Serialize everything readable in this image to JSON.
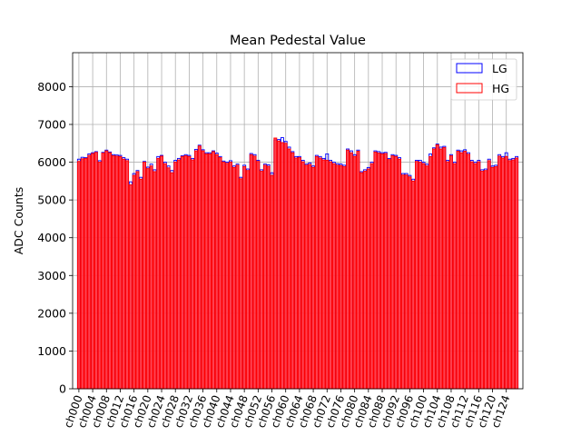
{
  "chart_data": {
    "type": "bar",
    "title": "Mean Pedestal Value",
    "xlabel": "",
    "ylabel": "ADC Counts",
    "ylim": [
      0,
      8900
    ],
    "yticks": [
      0,
      1000,
      2000,
      3000,
      4000,
      5000,
      6000,
      7000,
      8000
    ],
    "grid": true,
    "legend_position": "top-right",
    "colors": {
      "LG": "#0000ff",
      "HG": "#ff0000",
      "grid": "#b0b0b0"
    },
    "category_prefix": "ch",
    "category_count": 128,
    "tick_label_every": 4,
    "series": [
      {
        "name": "LG",
        "values": [
          6080,
          6130,
          6120,
          6220,
          6250,
          6280,
          6040,
          6260,
          6320,
          6270,
          6200,
          6190,
          6180,
          6120,
          6080,
          5480,
          5700,
          5780,
          5600,
          6020,
          5870,
          5950,
          5800,
          6150,
          6180,
          6000,
          5900,
          5780,
          6050,
          6100,
          6170,
          6200,
          6180,
          6100,
          6340,
          6450,
          6330,
          6250,
          6250,
          6300,
          6240,
          6150,
          6030,
          6000,
          6040,
          5900,
          5950,
          5600,
          5920,
          5820,
          6230,
          6200,
          6050,
          5800,
          5950,
          5930,
          5720,
          6580,
          6600,
          6650,
          6550,
          6400,
          6280,
          6150,
          6150,
          6050,
          5950,
          5980,
          5900,
          6180,
          6150,
          6100,
          6220,
          6050,
          6000,
          5960,
          5950,
          5920,
          6350,
          6300,
          6200,
          6320,
          5750,
          5800,
          5860,
          6000,
          6300,
          6280,
          6250,
          6260,
          6100,
          6200,
          6180,
          6120,
          5700,
          5700,
          5650,
          5550,
          6050,
          6050,
          6000,
          5950,
          6220,
          6380,
          6480,
          6400,
          6420,
          6050,
          6200,
          6000,
          6320,
          6300,
          6330,
          6250,
          6050,
          6000,
          6050,
          5800,
          5820,
          6080,
          5900,
          5920,
          6200,
          6150,
          6250,
          6080,
          6100,
          6150
        ]
      },
      {
        "name": "HG",
        "values": [
          6020,
          6090,
          6100,
          6180,
          6230,
          6260,
          6000,
          6240,
          6300,
          6250,
          6170,
          6160,
          6150,
          6080,
          6040,
          5400,
          5650,
          5750,
          5550,
          6000,
          5830,
          5900,
          5750,
          6100,
          6160,
          5960,
          5850,
          5720,
          6000,
          6060,
          6150,
          6170,
          6150,
          6060,
          6300,
          6430,
          6300,
          6220,
          6220,
          6280,
          6200,
          6120,
          6000,
          5970,
          6000,
          5860,
          5920,
          5560,
          5880,
          5780,
          6200,
          6160,
          6020,
          5760,
          5920,
          5890,
          5650,
          6640,
          6560,
          6520,
          6500,
          6350,
          6250,
          6110,
          6120,
          6010,
          5920,
          5940,
          5860,
          6150,
          6110,
          6060,
          6050,
          6010,
          5960,
          5920,
          5910,
          5880,
          6320,
          6250,
          6150,
          6290,
          5720,
          5760,
          5820,
          5960,
          6270,
          6240,
          6220,
          6230,
          6070,
          6170,
          6150,
          6080,
          5660,
          5660,
          5610,
          5500,
          6020,
          6000,
          5960,
          5900,
          6150,
          6350,
          6460,
          6350,
          6390,
          6010,
          6170,
          5960,
          6290,
          6250,
          6290,
          6210,
          6010,
          5960,
          6010,
          5760,
          5780,
          6040,
          5860,
          5880,
          6160,
          6110,
          6150,
          6040,
          6060,
          6110
        ]
      }
    ]
  }
}
